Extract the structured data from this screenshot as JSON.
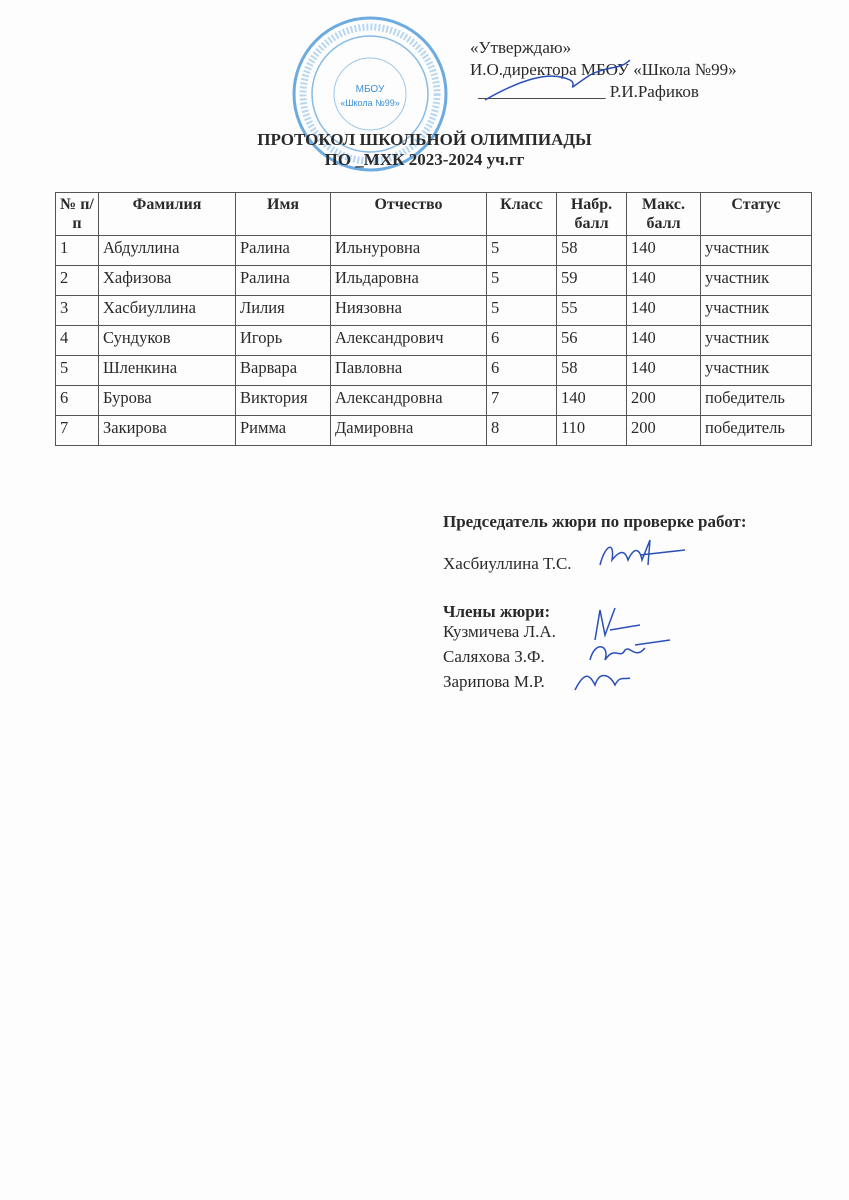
{
  "approval": {
    "line1": "«Утверждаю»",
    "line2": "И.О.директора МБОУ «Школа №99»",
    "line3": "_______________ Р.И.Рафиков"
  },
  "stamp": {
    "text": "МБОУ «Школа №99»",
    "color": "#3a8fd6"
  },
  "title": {
    "line1": "ПРОТОКОЛ ШКОЛЬНОЙ ОЛИМПИАДЫ",
    "line2": "ПО _МХК 2023-2024 уч.гг"
  },
  "table": {
    "headers": [
      "№ п/п",
      "Фамилия",
      "Имя",
      "Отчество",
      "Класс",
      "Набр. балл",
      "Макс. балл",
      "Статус"
    ],
    "rows": [
      [
        "1",
        "Абдуллина",
        "Ралина",
        "Ильнуровна",
        "5",
        "58",
        "140",
        "участник"
      ],
      [
        "2",
        "Хафизова",
        "Ралина",
        "Ильдаровна",
        "5",
        "59",
        "140",
        "участник"
      ],
      [
        "3",
        "Хасбиуллина",
        "Лилия",
        "Ниязовна",
        "5",
        "55",
        "140",
        "участник"
      ],
      [
        "4",
        "Сундуков",
        "Игорь",
        "Александрович",
        "6",
        "56",
        "140",
        "участник"
      ],
      [
        "5",
        "Шленкина",
        "Варвара",
        "Павловна",
        "6",
        "58",
        "140",
        "участник"
      ],
      [
        "6",
        "Бурова",
        "Виктория",
        "Александровна",
        "7",
        "140",
        "200",
        "победитель"
      ],
      [
        "7",
        "Закирова",
        "Римма",
        "Дамировна",
        "8",
        "110",
        "200",
        "победитель"
      ]
    ]
  },
  "jury": {
    "chair_label": "Председатель жюри по проверке работ:",
    "chair": "Хасбиуллина Т.С.",
    "members_label": "Члены жюри:",
    "members": [
      "Кузмичева Л.А.",
      "Саляхова З.Ф.",
      "Зарипова М.Р."
    ]
  },
  "signature_color": "#2b4fb8"
}
